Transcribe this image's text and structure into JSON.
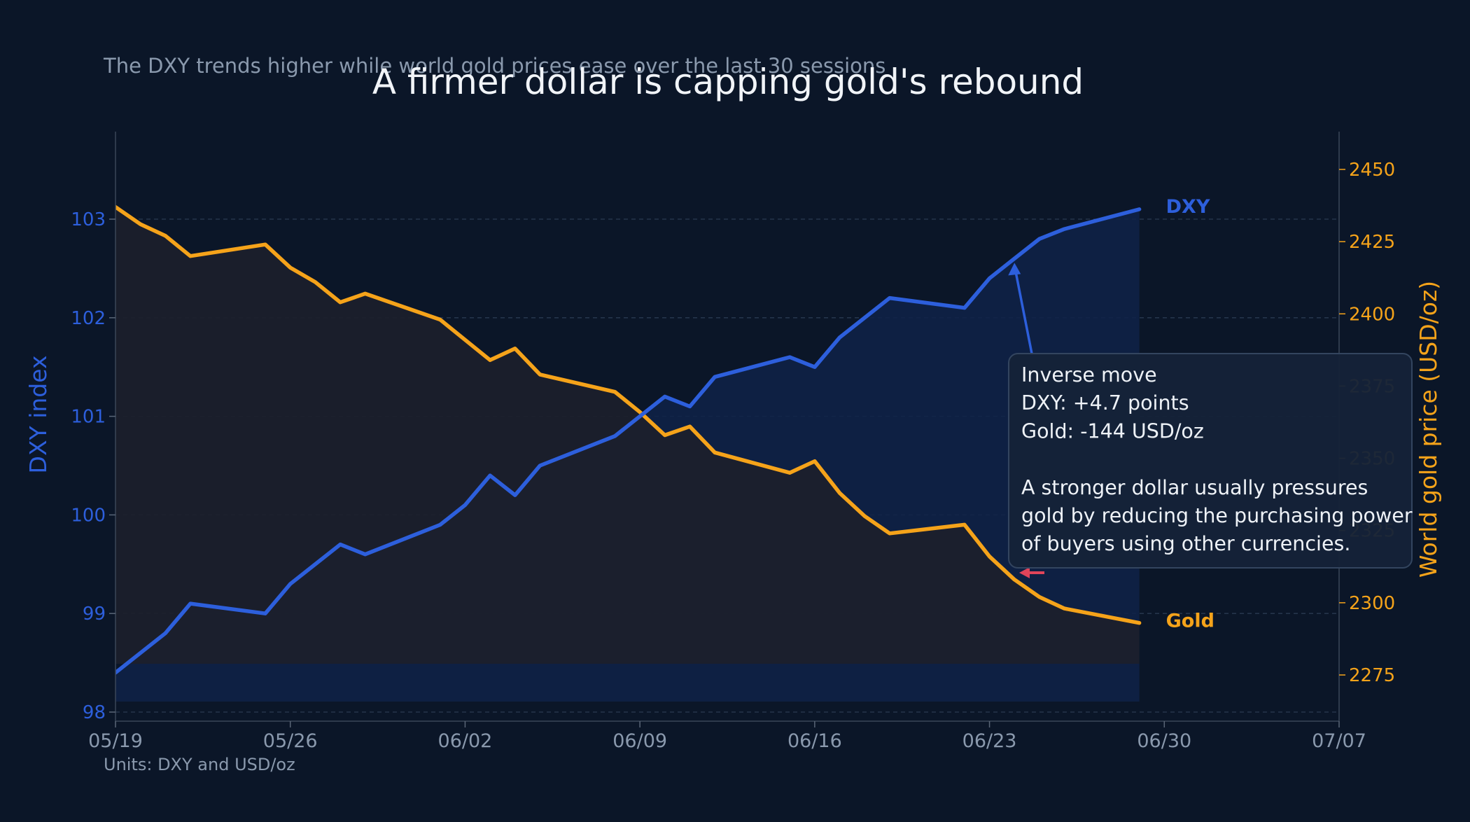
{
  "chart_data": {
    "type": "line",
    "title": "A firmer dollar is capping gold's rebound",
    "subtitle": "The DXY trends higher while world gold prices ease over the last 30 sessions",
    "footnote": "Units: DXY and USD/oz",
    "x_tick_labels": [
      "05/19",
      "05/26",
      "06/02",
      "06/09",
      "06/16",
      "06/23",
      "06/30",
      "07/07"
    ],
    "x_range_days": [
      0,
      49
    ],
    "left_axis": {
      "label": "DXY index",
      "range": [
        97.9,
        103.9
      ],
      "ticks": [
        98,
        99,
        100,
        101,
        102,
        103
      ]
    },
    "right_axis": {
      "label": "World gold price (USD/oz)",
      "range": [
        2262,
        2462
      ],
      "ticks": [
        2275,
        2300,
        2325,
        2350,
        2375,
        2400,
        2425,
        2450
      ]
    },
    "x_days": [
      0,
      1,
      2,
      3,
      6,
      7,
      8,
      9,
      10,
      13,
      14,
      15,
      16,
      17,
      20,
      21,
      22,
      23,
      24,
      27,
      28,
      29,
      30,
      31,
      34,
      35,
      36,
      37,
      38,
      41
    ],
    "series": [
      {
        "name": "DXY",
        "axis": "left",
        "color": "#2d5fdc",
        "values": [
          98.4,
          98.6,
          98.8,
          99.1,
          99.0,
          99.3,
          99.5,
          99.7,
          99.6,
          99.9,
          100.1,
          100.4,
          100.2,
          100.5,
          100.8,
          101.0,
          101.2,
          101.1,
          101.4,
          101.6,
          101.5,
          101.8,
          102.0,
          102.2,
          102.1,
          102.4,
          102.6,
          102.8,
          102.9,
          103.1
        ]
      },
      {
        "name": "Gold",
        "axis": "right",
        "color": "#f5a31a",
        "values": [
          2437,
          2431,
          2427,
          2420,
          2424,
          2416,
          2411,
          2404,
          2407,
          2398,
          2391,
          2384,
          2388,
          2379,
          2373,
          2366,
          2358,
          2361,
          2352,
          2345,
          2349,
          2338,
          2330,
          2324,
          2327,
          2316,
          2308,
          2302,
          2298,
          2293
        ]
      }
    ],
    "annotation": {
      "lines": [
        "Inverse move",
        "DXY: +4.7 points",
        "Gold: -144 USD/oz",
        "",
        "A stronger dollar usually pressures",
        "gold by reducing the purchasing power",
        "of buyers using other currencies."
      ]
    },
    "grid": "horizontal dashed",
    "colors": {
      "background": "#0b1628",
      "dxy": "#2d5fdc",
      "gold": "#f5a31a",
      "grid": "#2a3a52",
      "text_muted": "#8a99ad",
      "callout_bg": "#152238",
      "callout_border": "#33455f",
      "accent_arrow": "#e0445a"
    }
  }
}
